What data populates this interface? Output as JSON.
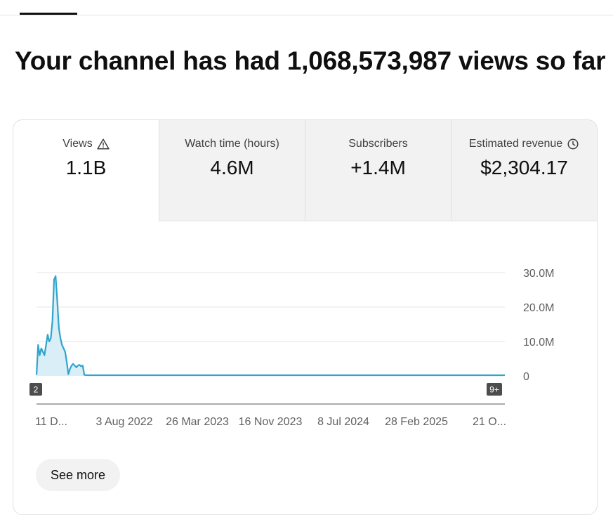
{
  "header": {
    "headline": "Your channel has had 1,068,573,987 views so far"
  },
  "metrics": [
    {
      "label": "Views",
      "value": "1.1B",
      "icon": "warning-icon",
      "active": true
    },
    {
      "label": "Watch time (hours)",
      "value": "4.6M"
    },
    {
      "label": "Subscribers",
      "value": "+1.4M"
    },
    {
      "label": "Estimated revenue",
      "value": "$2,304.17",
      "icon": "clock-icon"
    }
  ],
  "chart_data": {
    "type": "area",
    "series": [
      {
        "x_index": [
          0,
          5,
          10,
          15,
          20,
          25,
          30,
          35,
          40,
          45,
          50,
          55,
          60,
          65,
          70,
          75,
          80,
          85,
          90,
          95,
          100,
          105,
          110,
          115,
          120,
          125,
          130,
          135,
          140,
          145,
          150,
          160,
          200,
          300,
          400,
          500,
          600,
          700,
          800,
          900,
          1000,
          1100,
          1200,
          1300,
          1400,
          1470
        ],
        "values": [
          0.3,
          9,
          6,
          8,
          7,
          6,
          9,
          12,
          10,
          11,
          16,
          28,
          29,
          22,
          14,
          11,
          9,
          8,
          7,
          4,
          0.5,
          2,
          3,
          3.5,
          3,
          2.5,
          3,
          3.2,
          2.8,
          3,
          0.3,
          0.2,
          0.2,
          0.2,
          0.2,
          0.2,
          0.2,
          0.2,
          0.2,
          0.2,
          0.2,
          0.2,
          0.2,
          0.2,
          0.2,
          0.2
        ]
      }
    ],
    "x_tick_labels": [
      "11 D...",
      "3 Aug 2022",
      "26 Mar 2023",
      "16 Nov 2023",
      "8 Jul 2024",
      "28 Feb 2025",
      "21 O..."
    ],
    "y_tick_labels": [
      "0",
      "10.0M",
      "20.0M",
      "30.0M"
    ],
    "y_ticks": [
      0,
      10,
      20,
      30
    ],
    "ylim": [
      0,
      30
    ],
    "x_max": 1470,
    "grid": true,
    "line_color": "#2ea5cc",
    "fill_color": "#d9eef6",
    "badges": {
      "start": "2",
      "end": "9+"
    }
  },
  "see_more": {
    "label": "See more"
  }
}
